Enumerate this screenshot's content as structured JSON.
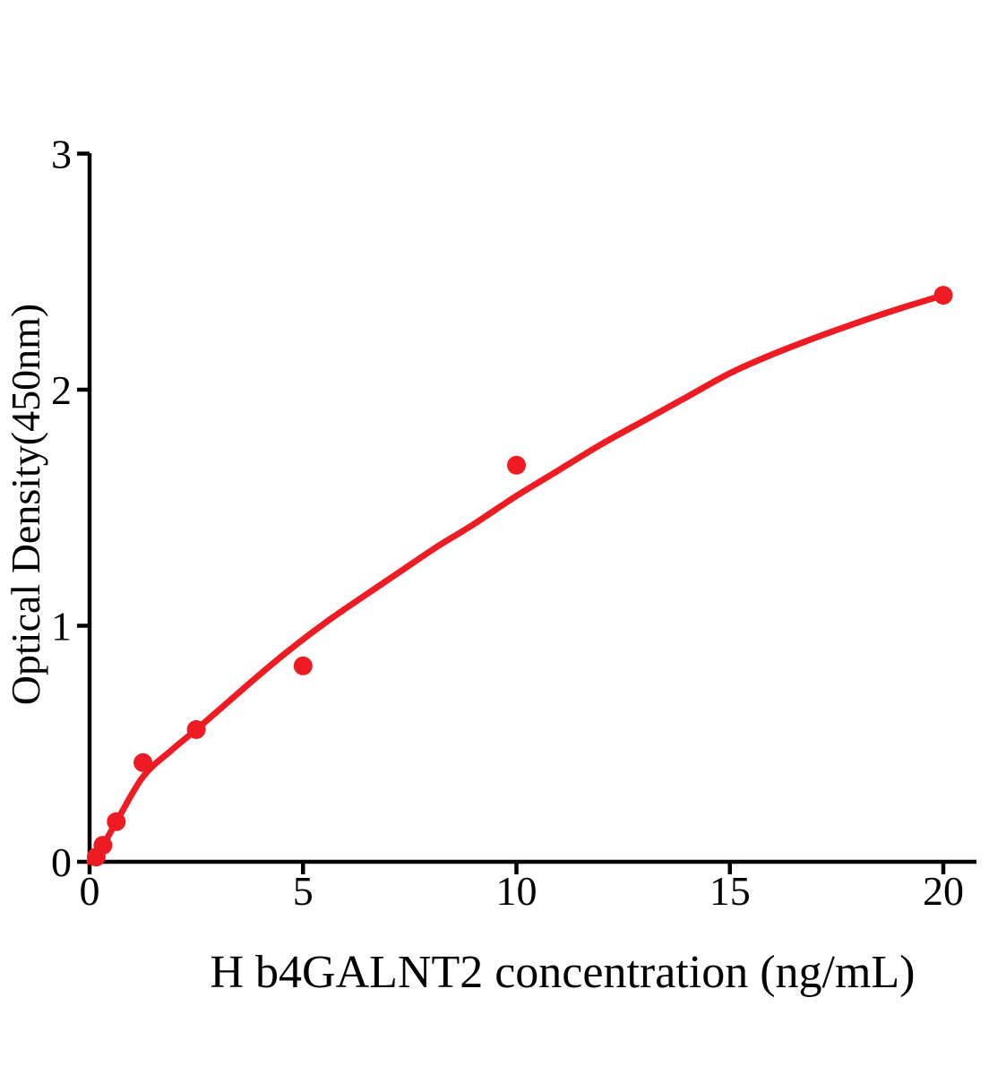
{
  "figure": {
    "background": "#ffffff",
    "axis_color": "#000000",
    "accent_red": "#EE1B22"
  },
  "chart_data": {
    "type": "scatter",
    "title": "",
    "xlabel": "H b4GALNT2 concentration (ng/mL)",
    "ylabel": "Optical Density(450nm)",
    "xlim": [
      0,
      20.8
    ],
    "ylim": [
      0,
      3
    ],
    "x_ticks": [
      0,
      5,
      10,
      15,
      20
    ],
    "y_ticks": [
      0,
      1,
      2,
      3
    ],
    "grid": false,
    "legend": false,
    "point_color": "#EE1B22",
    "curve_color": "#EE1B22",
    "series": [
      {
        "name": "measured-od-points",
        "type": "scatter",
        "x": [
          0.156,
          0.3125,
          0.625,
          1.25,
          2.5,
          5,
          10,
          20
        ],
        "y": [
          0.02,
          0.07,
          0.17,
          0.42,
          0.56,
          0.83,
          1.68,
          2.4
        ]
      },
      {
        "name": "fitted-curve",
        "type": "line",
        "x": [
          0,
          0.31,
          0.63,
          1.25,
          1.9,
          2.5,
          3.2,
          3.9,
          4.7,
          5.5,
          6.3,
          7.2,
          8.1,
          9,
          10,
          11,
          12,
          13,
          14,
          15,
          16,
          17,
          18,
          19,
          20
        ],
        "y": [
          0,
          0.07,
          0.17,
          0.36,
          0.47,
          0.56,
          0.67,
          0.78,
          0.9,
          1.01,
          1.11,
          1.22,
          1.33,
          1.43,
          1.55,
          1.66,
          1.77,
          1.87,
          1.97,
          2.07,
          2.15,
          2.22,
          2.285,
          2.345,
          2.4
        ]
      }
    ]
  }
}
